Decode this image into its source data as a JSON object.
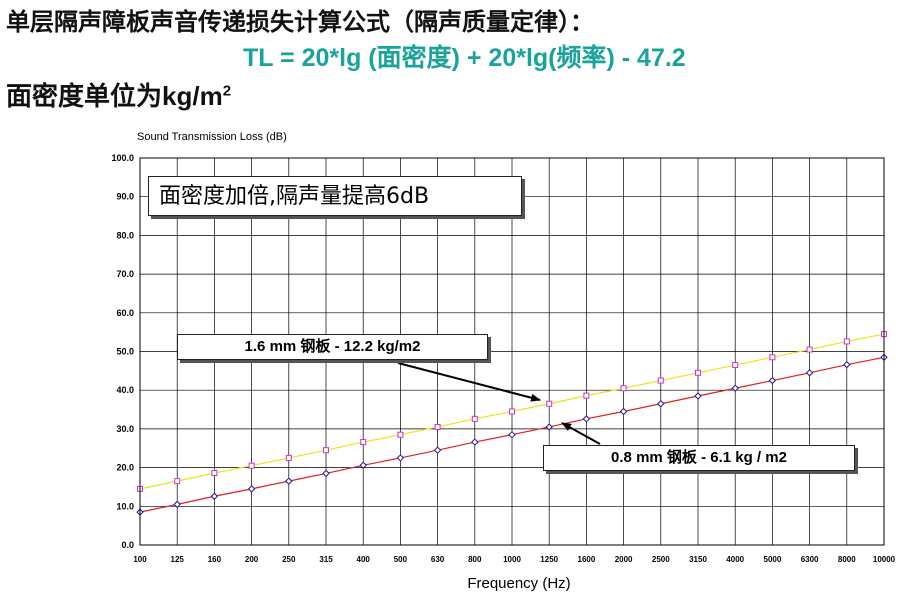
{
  "heading": {
    "line1": "单层隔声障板声音传递损失计算公式（隔声质量定律）：",
    "formula": "TL = 20*lg (面密度) + 20*lg(频率) - 47.2",
    "line3_prefix": "面密度单位为",
    "line3_unit": "kg/m",
    "line3_sup": "2"
  },
  "annotations": {
    "note": "面密度加倍,隔声量提高6dB",
    "thick_label": "1.6 mm 钢板 - 12.2 kg/m2",
    "thin_label": "0.8 mm 钢板 - 6.1 kg / m2"
  },
  "chart_data": {
    "type": "line",
    "ylabel": "Sound Transmission Loss (dB)",
    "xlabel": "Frequency (Hz)",
    "ylim": [
      0,
      100
    ],
    "grid": true,
    "categories": [
      "100",
      "125",
      "160",
      "200",
      "250",
      "315",
      "400",
      "500",
      "630",
      "800",
      "1000",
      "1250",
      "1600",
      "2000",
      "2500",
      "3150",
      "4000",
      "5000",
      "6300",
      "8000",
      "10000"
    ],
    "ytick_labels": [
      "0.0",
      "10.0",
      "20.0",
      "30.0",
      "40.0",
      "50.0",
      "60.0",
      "70.0",
      "80.0",
      "90.0",
      "100.0"
    ],
    "series": [
      {
        "name": "1.6 mm 钢板 - 12.2 kg/m2",
        "line_color": "#e6e619",
        "marker_color": "#cc33cc",
        "marker": "square",
        "values": [
          14.5,
          16.5,
          18.6,
          20.5,
          22.5,
          24.5,
          26.6,
          28.5,
          30.5,
          32.6,
          34.5,
          36.5,
          38.6,
          40.5,
          42.5,
          44.5,
          46.5,
          48.5,
          50.5,
          52.6,
          54.5
        ]
      },
      {
        "name": "0.8 mm 钢板 - 6.1 kg / m2",
        "line_color": "#e02020",
        "marker_color": "#1a1a99",
        "marker": "diamond",
        "values": [
          8.5,
          10.5,
          12.6,
          14.5,
          16.5,
          18.5,
          20.6,
          22.5,
          24.5,
          26.6,
          28.5,
          30.5,
          32.6,
          34.5,
          36.5,
          38.5,
          40.5,
          42.5,
          44.5,
          46.6,
          48.5
        ]
      }
    ]
  }
}
